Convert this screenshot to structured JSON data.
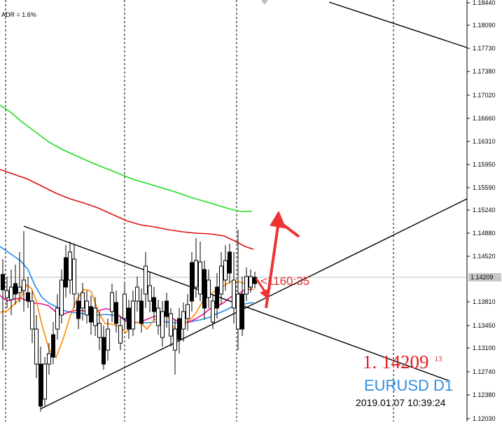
{
  "chart_data": {
    "type": "candlestick",
    "symbol": "EURUSD D1",
    "indicator_text": "ADR = 1.6%",
    "current_price": "1.14209",
    "current_price_main": "1. 14209",
    "current_price_sup": "13",
    "price_tag": "1.14209",
    "countdown": "<1160:35",
    "timestamp": "2019.01.07 10:39:24",
    "y_ticks": [
      "1.18440",
      "1.18090",
      "1.17730",
      "1.17380",
      "1.17020",
      "1.16660",
      "1.16310",
      "1.15950",
      "1.15590",
      "1.15240",
      "1.14880",
      "1.14520",
      "1.14209",
      "1.13810",
      "1.13450",
      "1.13100",
      "1.12740",
      "1.12380",
      "1.12030"
    ],
    "ylim": [
      1.1203,
      1.1844
    ],
    "grid": "vertical dashed",
    "colors": {
      "background": "#ffffff",
      "candle": "#000000",
      "ma_green": "#22dd22",
      "ma_red": "#dd1111",
      "ma_orange": "#ff8800",
      "ma_magenta": "#ee1188",
      "ma_blue": "#2288ee",
      "arrow": "#ee3333",
      "price_text": "#e02020",
      "symbol_text": "#2e8fe0"
    }
  }
}
